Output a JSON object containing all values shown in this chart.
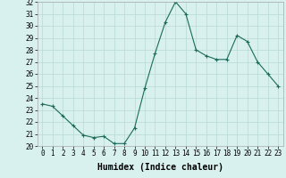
{
  "xlabel": "Humidex (Indice chaleur)",
  "x": [
    0,
    1,
    2,
    3,
    4,
    5,
    6,
    7,
    8,
    9,
    10,
    11,
    12,
    13,
    14,
    15,
    16,
    17,
    18,
    19,
    20,
    21,
    22,
    23
  ],
  "y": [
    23.5,
    23.3,
    22.5,
    21.7,
    20.9,
    20.7,
    20.8,
    20.2,
    20.2,
    21.5,
    24.8,
    27.7,
    30.3,
    32.0,
    31.0,
    28.0,
    27.5,
    27.2,
    27.2,
    29.2,
    28.7,
    27.0,
    26.0,
    25.0
  ],
  "ylim": [
    20,
    32
  ],
  "xlim": [
    -0.5,
    23.5
  ],
  "yticks": [
    20,
    21,
    22,
    23,
    24,
    25,
    26,
    27,
    28,
    29,
    30,
    31,
    32
  ],
  "xticks": [
    0,
    1,
    2,
    3,
    4,
    5,
    6,
    7,
    8,
    9,
    10,
    11,
    12,
    13,
    14,
    15,
    16,
    17,
    18,
    19,
    20,
    21,
    22,
    23
  ],
  "line_color": "#1a6b5a",
  "marker": "+",
  "bg_color": "#d8f0ee",
  "grid_color": "#b8d8d4",
  "tick_label_fontsize": 5.5,
  "xlabel_fontsize": 7,
  "xlabel_fontweight": "bold"
}
